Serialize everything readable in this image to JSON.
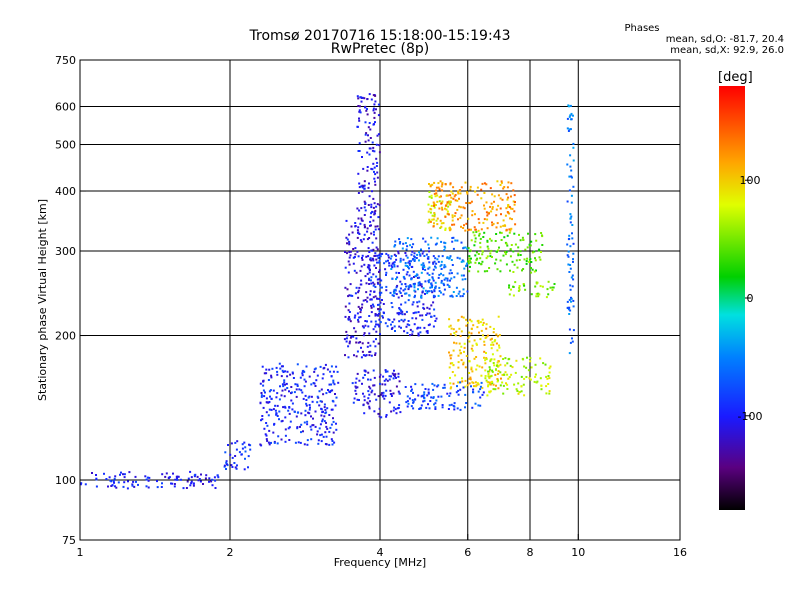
{
  "header": {
    "title_line1": "Tromsø 20170716 15:18:00-15:19:43",
    "title_line2": "RwPretec (8p)"
  },
  "stats": {
    "label": "Phases",
    "line_o": "mean, sd,O: -81.7, 20.4",
    "line_x": "mean, sd,X:  92.9, 26.0"
  },
  "colorbar": {
    "unit": "deg",
    "ticks": [
      "100",
      "0",
      "-100"
    ],
    "tick_values": [
      100,
      0,
      -100
    ],
    "range": [
      -180,
      180
    ]
  },
  "chart_data": {
    "type": "scatter",
    "xlabel": "Frequency [MHz]",
    "ylabel": "Stationary phase Virtual Height [km]",
    "xscale": "log",
    "yscale": "log",
    "xlim": [
      1,
      16
    ],
    "ylim": [
      75,
      750
    ],
    "x_ticks": [
      1,
      2,
      4,
      6,
      8,
      10,
      16
    ],
    "x_tick_labels": [
      "1",
      "2",
      "4",
      "6",
      "8",
      "10",
      "16"
    ],
    "y_ticks": [
      75,
      100,
      200,
      300,
      400,
      500,
      600,
      750
    ],
    "y_tick_labels": [
      "75",
      "100",
      "200",
      "300",
      "400",
      "500",
      "600",
      "750"
    ],
    "x_gridlines": [
      2,
      4,
      6,
      8,
      10
    ],
    "y_gridlines": [
      100,
      200,
      300,
      400,
      500,
      600
    ],
    "grid": true,
    "point_clusters": [
      {
        "x": [
          1.0,
          1.9
        ],
        "y": [
          96,
          104
        ],
        "phase": -100
      },
      {
        "x": [
          1.95,
          2.2
        ],
        "y": [
          105,
          122
        ],
        "phase": -90
      },
      {
        "x": [
          2.3,
          3.3
        ],
        "y": [
          118,
          175
        ],
        "phase": -95
      },
      {
        "x": [
          3.4,
          4.0
        ],
        "y": [
          180,
          350
        ],
        "phase": -110
      },
      {
        "x": [
          3.6,
          4.0
        ],
        "y": [
          350,
          640
        ],
        "phase": -110
      },
      {
        "x": [
          3.5,
          4.4
        ],
        "y": [
          135,
          170
        ],
        "phase": -105
      },
      {
        "x": [
          3.8,
          5.2
        ],
        "y": [
          200,
          300
        ],
        "phase": -95
      },
      {
        "x": [
          4.2,
          6.0
        ],
        "y": [
          240,
          320
        ],
        "phase": -60
      },
      {
        "x": [
          5.0,
          5.6
        ],
        "y": [
          330,
          400
        ],
        "phase": 80
      },
      {
        "x": [
          5.5,
          7.0
        ],
        "y": [
          155,
          220
        ],
        "phase": 100
      },
      {
        "x": [
          6.0,
          8.5
        ],
        "y": [
          270,
          330
        ],
        "phase": 40
      },
      {
        "x": [
          7.2,
          9.0
        ],
        "y": [
          240,
          260
        ],
        "phase": 50
      },
      {
        "x": [
          6.5,
          8.8
        ],
        "y": [
          150,
          180
        ],
        "phase": 70
      },
      {
        "x": [
          9.5,
          9.8
        ],
        "y": [
          180,
          620
        ],
        "phase": -60
      },
      {
        "x": [
          5.0,
          7.5
        ],
        "y": [
          330,
          420
        ],
        "phase": 120
      },
      {
        "x": [
          4.5,
          6.5
        ],
        "y": [
          140,
          160
        ],
        "phase": -80
      }
    ]
  }
}
